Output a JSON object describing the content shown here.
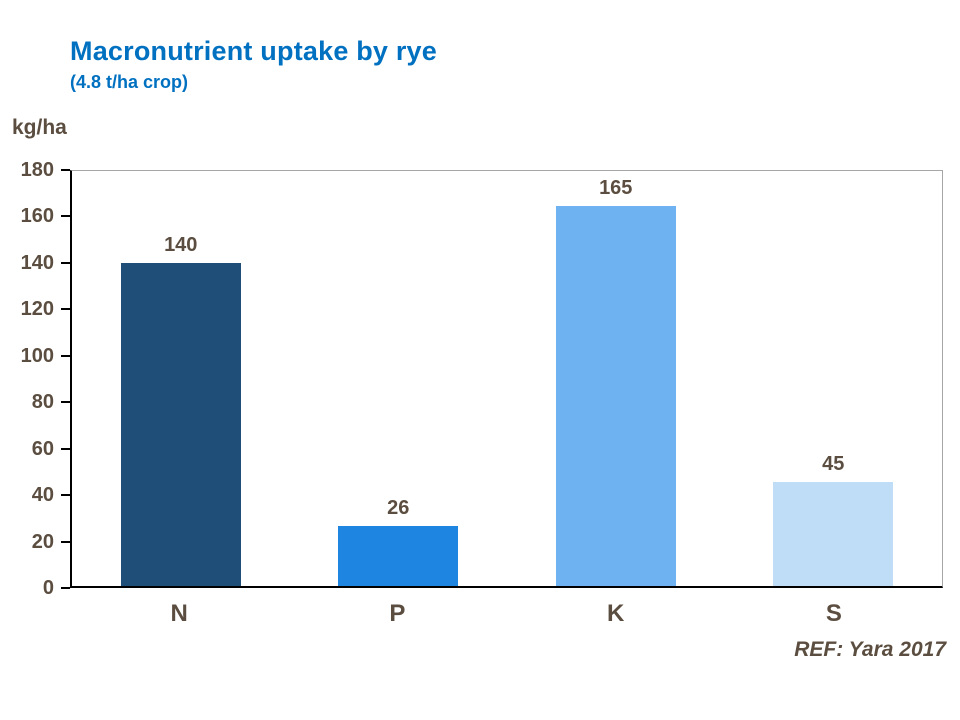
{
  "header": {
    "title": "Macronutrient uptake by rye",
    "subtitle": "(4.8 t/ha crop)"
  },
  "axis": {
    "y_unit_label": "kg/ha"
  },
  "footer": {
    "ref": "REF: Yara 2017"
  },
  "colors": {
    "title": "#0070C0",
    "text": "#5B4E40",
    "axis_line": "#000000",
    "plot_border": "#A6A6A6",
    "bars": [
      "#1F4E79",
      "#1E86E0",
      "#6FB2F2",
      "#BFDDF6"
    ]
  },
  "chart_data": {
    "type": "bar",
    "categories": [
      "N",
      "P",
      "K",
      "S"
    ],
    "values": [
      140,
      26,
      165,
      45
    ],
    "title": "Macronutrient uptake by rye (4.8 t/ha crop)",
    "xlabel": "",
    "ylabel": "kg/ha",
    "ylim": [
      0,
      180
    ],
    "ytick_step": 20,
    "grid": false,
    "data_labels": true,
    "legend": "none",
    "annotations": [
      "REF: Yara 2017"
    ]
  }
}
